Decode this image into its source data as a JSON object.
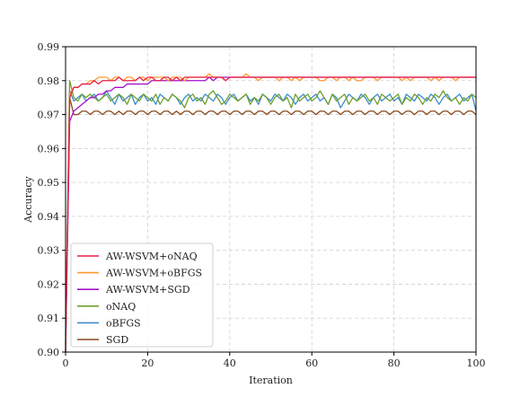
{
  "chart_data": {
    "type": "line",
    "xlabel": "Iteration",
    "ylabel": "Accuracy",
    "xlim": [
      0,
      100
    ],
    "ylim": [
      0.9,
      0.99
    ],
    "x_ticks": [
      "0",
      "20",
      "40",
      "60",
      "80",
      "100"
    ],
    "y_ticks": [
      "0.90",
      "0.91",
      "0.92",
      "0.93",
      "0.94",
      "0.95",
      "0.96",
      "0.97",
      "0.98",
      "0.99"
    ],
    "grid": true,
    "legend_position": "bottom-left",
    "x": [
      0,
      1,
      2,
      3,
      4,
      5,
      6,
      7,
      8,
      9,
      10,
      11,
      12,
      13,
      14,
      15,
      16,
      17,
      18,
      19,
      20,
      21,
      22,
      23,
      24,
      25,
      26,
      27,
      28,
      29,
      30,
      31,
      32,
      33,
      34,
      35,
      36,
      37,
      38,
      39,
      40,
      41,
      42,
      43,
      44,
      45,
      46,
      47,
      48,
      49,
      50,
      51,
      52,
      53,
      54,
      55,
      56,
      57,
      58,
      59,
      60,
      61,
      62,
      63,
      64,
      65,
      66,
      67,
      68,
      69,
      70,
      71,
      72,
      73,
      74,
      75,
      76,
      77,
      78,
      79,
      80,
      81,
      82,
      83,
      84,
      85,
      86,
      87,
      88,
      89,
      90,
      91,
      92,
      93,
      94,
      95,
      96,
      97,
      98,
      99,
      100
    ],
    "series": [
      {
        "name": "AW-WSVM+oNAQ",
        "color": "#e8204a",
        "values": [
          0.902,
          0.975,
          0.978,
          0.978,
          0.979,
          0.979,
          0.979,
          0.98,
          0.979,
          0.98,
          0.98,
          0.98,
          0.98,
          0.981,
          0.98,
          0.98,
          0.98,
          0.98,
          0.981,
          0.98,
          0.981,
          0.981,
          0.98,
          0.98,
          0.981,
          0.981,
          0.98,
          0.981,
          0.98,
          0.981,
          0.981,
          0.981,
          0.981,
          0.981,
          0.981,
          0.981,
          0.981,
          0.981,
          0.981,
          0.98,
          0.981,
          0.981,
          0.981,
          0.981,
          0.981,
          0.981,
          0.981,
          0.981,
          0.981,
          0.981,
          0.981,
          0.981,
          0.981,
          0.981,
          0.981,
          0.981,
          0.981,
          0.981,
          0.981,
          0.981,
          0.981,
          0.981,
          0.981,
          0.981,
          0.981,
          0.981,
          0.981,
          0.981,
          0.981,
          0.981,
          0.981,
          0.981,
          0.981,
          0.981,
          0.981,
          0.981,
          0.981,
          0.981,
          0.981,
          0.981,
          0.981,
          0.981,
          0.981,
          0.981,
          0.981,
          0.981,
          0.981,
          0.981,
          0.981,
          0.981,
          0.981,
          0.981,
          0.981,
          0.981,
          0.981,
          0.981,
          0.981,
          0.981,
          0.981,
          0.981,
          0.981
        ]
      },
      {
        "name": "AW-WSVM+oBFGS",
        "color": "#ff9a2e",
        "values": [
          0.901,
          0.976,
          0.978,
          0.978,
          0.979,
          0.979,
          0.98,
          0.98,
          0.981,
          0.981,
          0.981,
          0.98,
          0.981,
          0.981,
          0.98,
          0.981,
          0.981,
          0.98,
          0.981,
          0.981,
          0.98,
          0.981,
          0.981,
          0.981,
          0.981,
          0.98,
          0.981,
          0.981,
          0.981,
          0.98,
          0.981,
          0.981,
          0.981,
          0.981,
          0.981,
          0.982,
          0.981,
          0.981,
          0.981,
          0.98,
          0.981,
          0.981,
          0.981,
          0.981,
          0.982,
          0.981,
          0.981,
          0.98,
          0.981,
          0.981,
          0.981,
          0.981,
          0.98,
          0.981,
          0.981,
          0.98,
          0.981,
          0.98,
          0.981,
          0.981,
          0.981,
          0.981,
          0.98,
          0.98,
          0.981,
          0.981,
          0.98,
          0.981,
          0.981,
          0.98,
          0.981,
          0.98,
          0.98,
          0.981,
          0.981,
          0.981,
          0.98,
          0.981,
          0.981,
          0.981,
          0.981,
          0.981,
          0.98,
          0.981,
          0.98,
          0.981,
          0.981,
          0.981,
          0.981,
          0.98,
          0.981,
          0.98,
          0.981,
          0.981,
          0.981,
          0.98,
          0.981,
          0.981,
          0.981,
          0.981,
          0.981
        ]
      },
      {
        "name": "AW-WSVM+SGD",
        "color": "#a313c9",
        "values": [
          0.9,
          0.968,
          0.971,
          0.972,
          0.973,
          0.974,
          0.975,
          0.975,
          0.976,
          0.976,
          0.977,
          0.977,
          0.978,
          0.978,
          0.978,
          0.979,
          0.979,
          0.979,
          0.979,
          0.979,
          0.979,
          0.98,
          0.98,
          0.98,
          0.98,
          0.98,
          0.98,
          0.98,
          0.98,
          0.98,
          0.98,
          0.98,
          0.98,
          0.98,
          0.98,
          0.981,
          0.98,
          0.981,
          0.981,
          0.981,
          0.981,
          0.981,
          0.981,
          0.981,
          0.981,
          0.981,
          0.981,
          0.981,
          0.981,
          0.981,
          0.981,
          0.981,
          0.981,
          0.981,
          0.981,
          0.981,
          0.981,
          0.981,
          0.981,
          0.981,
          0.981,
          0.981,
          0.981,
          0.981,
          0.981,
          0.981,
          0.981,
          0.981,
          0.981,
          0.981,
          0.981,
          0.981,
          0.981,
          0.981,
          0.981,
          0.981,
          0.981,
          0.981,
          0.981,
          0.981,
          0.981,
          0.981,
          0.981,
          0.981,
          0.981,
          0.981,
          0.981,
          0.981,
          0.981,
          0.981,
          0.981,
          0.981,
          0.981,
          0.981,
          0.981,
          0.981,
          0.981,
          0.981,
          0.981,
          0.981,
          0.981
        ]
      },
      {
        "name": "oNAQ",
        "color": "#6fa02c",
        "values": [
          0.905,
          0.98,
          0.975,
          0.974,
          0.976,
          0.975,
          0.976,
          0.975,
          0.974,
          0.975,
          0.976,
          0.974,
          0.975,
          0.976,
          0.975,
          0.973,
          0.976,
          0.975,
          0.974,
          0.976,
          0.975,
          0.974,
          0.976,
          0.973,
          0.975,
          0.974,
          0.976,
          0.975,
          0.974,
          0.972,
          0.975,
          0.976,
          0.974,
          0.975,
          0.973,
          0.976,
          0.977,
          0.975,
          0.973,
          0.974,
          0.976,
          0.975,
          0.974,
          0.975,
          0.976,
          0.973,
          0.975,
          0.974,
          0.976,
          0.975,
          0.973,
          0.975,
          0.976,
          0.974,
          0.975,
          0.972,
          0.976,
          0.974,
          0.975,
          0.976,
          0.974,
          0.975,
          0.977,
          0.975,
          0.973,
          0.976,
          0.974,
          0.975,
          0.976,
          0.973,
          0.975,
          0.974,
          0.975,
          0.976,
          0.974,
          0.975,
          0.973,
          0.976,
          0.975,
          0.974,
          0.975,
          0.976,
          0.973,
          0.975,
          0.974,
          0.976,
          0.975,
          0.973,
          0.975,
          0.974,
          0.976,
          0.975,
          0.977,
          0.975,
          0.974,
          0.975,
          0.973,
          0.975,
          0.974,
          0.976,
          0.975
        ]
      },
      {
        "name": "oBFGS",
        "color": "#3c8cc9",
        "values": [
          0.903,
          0.977,
          0.974,
          0.975,
          0.976,
          0.974,
          0.975,
          0.976,
          0.974,
          0.975,
          0.977,
          0.975,
          0.973,
          0.976,
          0.974,
          0.975,
          0.976,
          0.973,
          0.975,
          0.976,
          0.974,
          0.975,
          0.973,
          0.976,
          0.975,
          0.974,
          0.976,
          0.975,
          0.973,
          0.975,
          0.976,
          0.974,
          0.975,
          0.974,
          0.976,
          0.975,
          0.974,
          0.976,
          0.975,
          0.973,
          0.975,
          0.976,
          0.974,
          0.975,
          0.976,
          0.974,
          0.975,
          0.973,
          0.976,
          0.975,
          0.974,
          0.976,
          0.975,
          0.974,
          0.976,
          0.975,
          0.973,
          0.975,
          0.976,
          0.974,
          0.975,
          0.976,
          0.974,
          0.975,
          0.973,
          0.976,
          0.975,
          0.972,
          0.974,
          0.976,
          0.975,
          0.974,
          0.976,
          0.975,
          0.973,
          0.975,
          0.976,
          0.974,
          0.975,
          0.976,
          0.974,
          0.975,
          0.973,
          0.976,
          0.975,
          0.974,
          0.976,
          0.975,
          0.974,
          0.976,
          0.975,
          0.973,
          0.975,
          0.976,
          0.974,
          0.975,
          0.976,
          0.974,
          0.975,
          0.976,
          0.971
        ]
      },
      {
        "name": "SGD",
        "color": "#8b4a1e",
        "values": [
          0.9,
          0.975,
          0.97,
          0.97,
          0.971,
          0.971,
          0.97,
          0.971,
          0.971,
          0.97,
          0.971,
          0.971,
          0.97,
          0.971,
          0.97,
          0.971,
          0.971,
          0.97,
          0.971,
          0.971,
          0.97,
          0.971,
          0.971,
          0.97,
          0.971,
          0.971,
          0.97,
          0.971,
          0.97,
          0.971,
          0.971,
          0.97,
          0.971,
          0.971,
          0.97,
          0.971,
          0.971,
          0.97,
          0.971,
          0.971,
          0.97,
          0.971,
          0.971,
          0.97,
          0.971,
          0.971,
          0.97,
          0.971,
          0.971,
          0.97,
          0.971,
          0.971,
          0.97,
          0.971,
          0.971,
          0.97,
          0.971,
          0.971,
          0.97,
          0.971,
          0.971,
          0.97,
          0.971,
          0.971,
          0.97,
          0.971,
          0.971,
          0.97,
          0.971,
          0.971,
          0.97,
          0.971,
          0.971,
          0.97,
          0.971,
          0.971,
          0.97,
          0.971,
          0.971,
          0.97,
          0.971,
          0.971,
          0.97,
          0.971,
          0.971,
          0.97,
          0.971,
          0.971,
          0.97,
          0.971,
          0.971,
          0.97,
          0.971,
          0.971,
          0.97,
          0.971,
          0.971,
          0.97,
          0.971,
          0.971,
          0.97
        ]
      }
    ]
  }
}
